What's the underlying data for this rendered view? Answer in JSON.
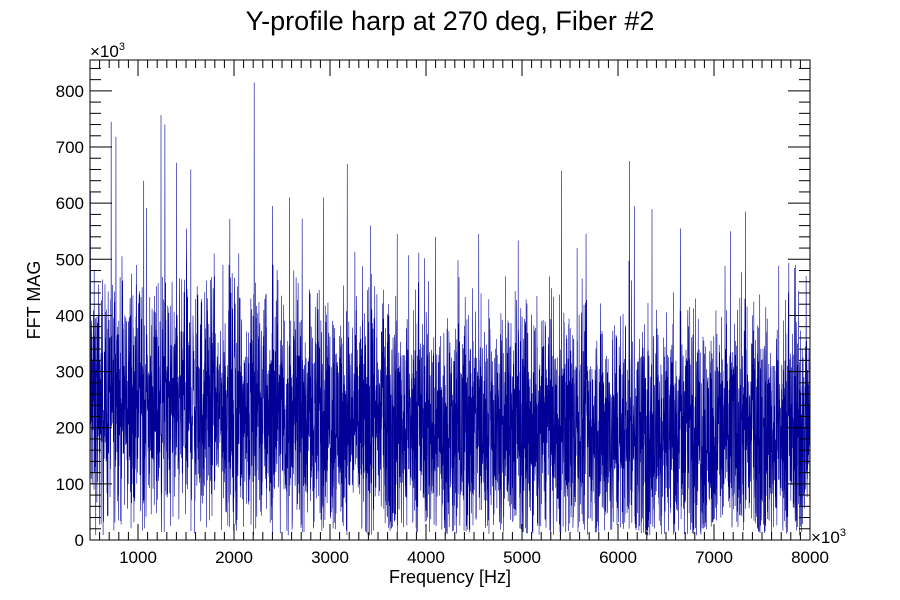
{
  "chart_data": {
    "type": "line",
    "title": "Y-profile harp at 270 deg, Fiber #2",
    "xlabel": "Frequency [Hz]",
    "ylabel": "FFT MAG",
    "x_multiplier": "×10",
    "x_multiplier_exp": "3",
    "y_multiplier": "×10",
    "y_multiplier_exp": "3",
    "xlim": [
      500,
      8000
    ],
    "ylim": [
      0,
      855
    ],
    "xticks": [
      1000,
      2000,
      3000,
      4000,
      5000,
      6000,
      7000,
      8000
    ],
    "yticks": [
      0,
      100,
      200,
      300,
      400,
      500,
      600,
      700,
      800
    ],
    "xtick_labels": [
      "1000",
      "2000",
      "3000",
      "4000",
      "5000",
      "6000",
      "7000",
      "8000"
    ],
    "ytick_labels": [
      "0",
      "100",
      "200",
      "300",
      "400",
      "500",
      "600",
      "700",
      "800"
    ],
    "grid": false,
    "series": [
      {
        "color": "#000099",
        "sample_count": 5000,
        "band": {
          "x": [
            500,
            1500,
            2500,
            3500,
            4500,
            5500,
            6500,
            7500,
            8000
          ],
          "center": [
            245,
            240,
            228,
            212,
            200,
            195,
            192,
            190,
            188
          ]
        },
        "spikes": [
          {
            "x": 505,
            "y": 620
          },
          {
            "x": 770,
            "y": 718
          },
          {
            "x": 1060,
            "y": 640
          },
          {
            "x": 1240,
            "y": 757
          },
          {
            "x": 1280,
            "y": 740
          },
          {
            "x": 1400,
            "y": 672
          },
          {
            "x": 1550,
            "y": 660
          },
          {
            "x": 2210,
            "y": 815
          },
          {
            "x": 2400,
            "y": 595
          },
          {
            "x": 2580,
            "y": 610
          },
          {
            "x": 2930,
            "y": 610
          },
          {
            "x": 3180,
            "y": 670
          },
          {
            "x": 3420,
            "y": 560
          },
          {
            "x": 3700,
            "y": 545
          },
          {
            "x": 4100,
            "y": 540
          },
          {
            "x": 4550,
            "y": 545
          },
          {
            "x": 5410,
            "y": 658
          },
          {
            "x": 6120,
            "y": 675
          },
          {
            "x": 6170,
            "y": 595
          },
          {
            "x": 6650,
            "y": 555
          },
          {
            "x": 7170,
            "y": 550
          },
          {
            "x": 7330,
            "y": 585
          },
          {
            "x": 7850,
            "y": 490
          },
          {
            "x": 7960,
            "y": 470
          }
        ]
      }
    ]
  }
}
